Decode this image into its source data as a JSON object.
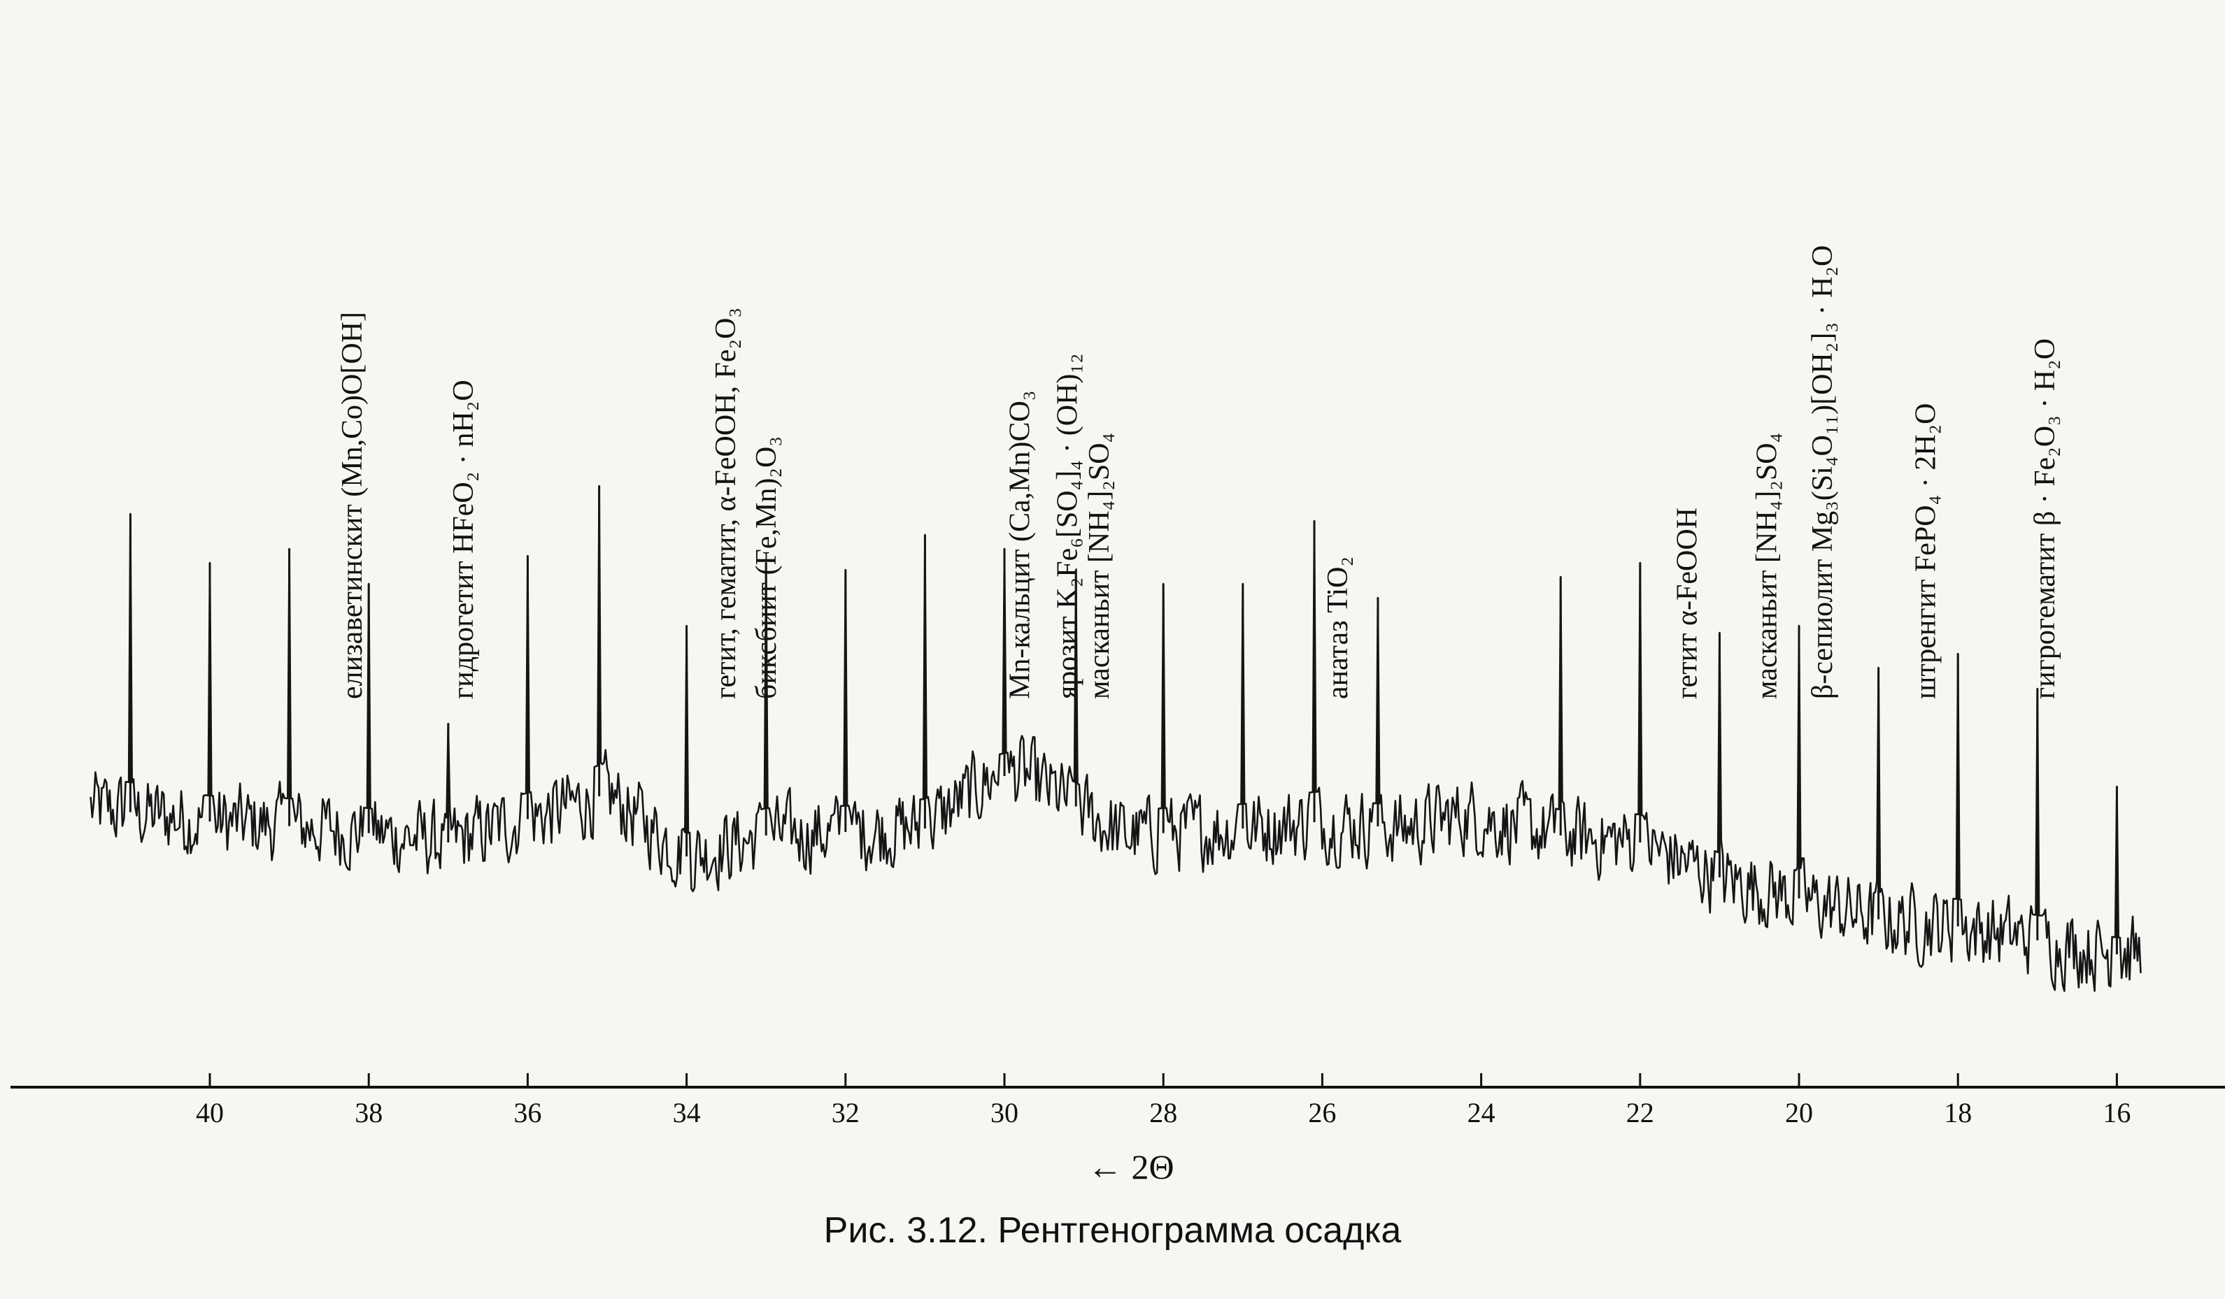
{
  "chart_data": {
    "type": "line",
    "caption": "Рис. 3.12. Рентгенограмма осадка",
    "xlabel": "← 2Θ",
    "xlim": [
      41.5,
      15.7
    ],
    "x_reversed": true,
    "y_units": "relative intensity",
    "ylim": [
      0,
      1
    ],
    "grid": false,
    "x_ticks": [
      40,
      38,
      36,
      34,
      32,
      30,
      28,
      26,
      24,
      22,
      20,
      18,
      16
    ],
    "baseline": {
      "x": [
        41.5,
        40.0,
        38.5,
        37.0,
        35.5,
        35.0,
        34.0,
        33.0,
        31.0,
        30.2,
        29.8,
        28.5,
        27.0,
        26.0,
        25.0,
        24.2,
        23.0,
        22.0,
        21.0,
        20.0,
        19.0,
        18.0,
        17.0,
        16.0
      ],
      "y": [
        0.4,
        0.38,
        0.37,
        0.35,
        0.4,
        0.42,
        0.33,
        0.36,
        0.37,
        0.44,
        0.45,
        0.36,
        0.37,
        0.38,
        0.37,
        0.39,
        0.36,
        0.35,
        0.3,
        0.27,
        0.24,
        0.23,
        0.21,
        0.19
      ],
      "noise": 0.025
    },
    "peaks": [
      {
        "x": 41.0,
        "y": 0.82
      },
      {
        "x": 40.0,
        "y": 0.75
      },
      {
        "x": 39.0,
        "y": 0.77
      },
      {
        "x": 38.0,
        "y": 0.72
      },
      {
        "x": 37.0,
        "y": 0.52
      },
      {
        "x": 36.0,
        "y": 0.76
      },
      {
        "x": 35.1,
        "y": 0.86
      },
      {
        "x": 34.0,
        "y": 0.66
      },
      {
        "x": 33.0,
        "y": 0.75
      },
      {
        "x": 32.0,
        "y": 0.74
      },
      {
        "x": 31.0,
        "y": 0.79
      },
      {
        "x": 30.0,
        "y": 0.77
      },
      {
        "x": 29.1,
        "y": 0.74
      },
      {
        "x": 28.0,
        "y": 0.72
      },
      {
        "x": 27.0,
        "y": 0.72
      },
      {
        "x": 26.1,
        "y": 0.81
      },
      {
        "x": 25.3,
        "y": 0.7
      },
      {
        "x": 23.0,
        "y": 0.73
      },
      {
        "x": 22.0,
        "y": 0.75
      },
      {
        "x": 21.0,
        "y": 0.65
      },
      {
        "x": 20.0,
        "y": 0.66
      },
      {
        "x": 19.0,
        "y": 0.6
      },
      {
        "x": 18.0,
        "y": 0.62
      },
      {
        "x": 17.0,
        "y": 0.57
      },
      {
        "x": 16.0,
        "y": 0.43
      }
    ],
    "annotations": [
      {
        "x": 38.0,
        "lines": [
          "елизаветинскит  (Mn,Co)O[OH]"
        ]
      },
      {
        "x": 36.6,
        "lines": [
          "гидрогетит HFeO₂ · nH₂O"
        ]
      },
      {
        "x": 33.3,
        "lines": [
          "гетит,    гематит, α-FeOOH, Fe₂O₃",
          "биксбиит                 (Fe,Mn)₂O₃"
        ]
      },
      {
        "x": 29.6,
        "lines": [
          "Mn-кальцит  (Ca,Mn)CO₃"
        ]
      },
      {
        "x": 29.0,
        "lines": [
          "ярозит  K₂Fe₆[SO₄]₄ · (OH)₁₂"
        ]
      },
      {
        "x": 28.6,
        "lines": [
          "масканьит [NH₄]₂SO₄"
        ]
      },
      {
        "x": 25.6,
        "lines": [
          "анатаз  TiO₂"
        ]
      },
      {
        "x": 21.2,
        "lines": [
          "гетит α-FeOOH"
        ]
      },
      {
        "x": 20.2,
        "lines": [
          "масканьит  [NH₄]₂SO₄"
        ]
      },
      {
        "x": 19.5,
        "lines": [
          "β-сепиолит Mg₃(Si₄O₁₁)[OH₂]₃ · H₂O"
        ]
      },
      {
        "x": 18.2,
        "lines": [
          "штренгит FePO₄ · 2H₂O"
        ]
      },
      {
        "x": 16.7,
        "lines": [
          "гигрогематит  β · Fe₂O₃ · H₂O"
        ]
      }
    ]
  }
}
